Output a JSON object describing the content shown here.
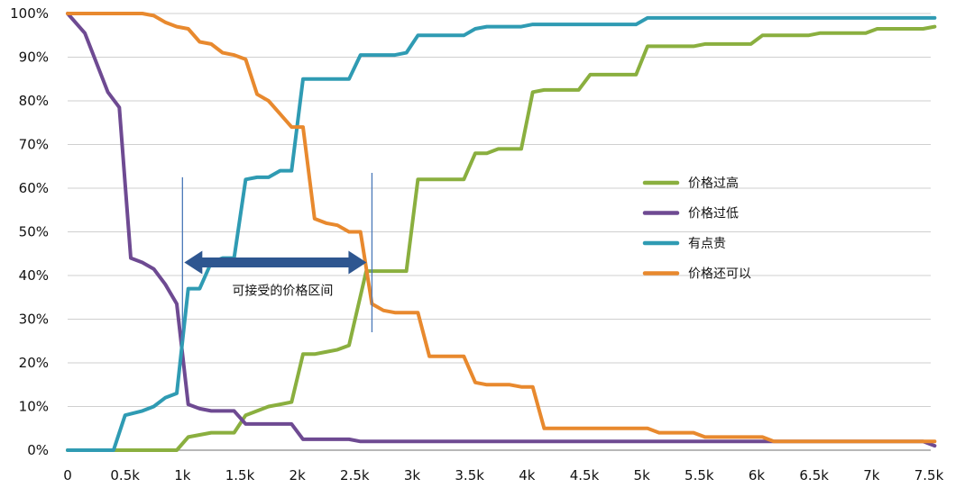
{
  "chart_data": {
    "type": "line",
    "xlim": [
      0,
      7500
    ],
    "ylim": [
      0,
      100
    ],
    "x_ticks": [
      "0",
      "0.5k",
      "1k",
      "1.5k",
      "2k",
      "2.5k",
      "3k",
      "3.5k",
      "4k",
      "4.5k",
      "5k",
      "5.5k",
      "6k",
      "6.5k",
      "7k",
      "7.5k"
    ],
    "y_ticks": [
      "0%",
      "10%",
      "20%",
      "30%",
      "40%",
      "50%",
      "60%",
      "70%",
      "80%",
      "90%",
      "100%"
    ],
    "grid": "horizontal",
    "legend_position": "right",
    "series": [
      {
        "name": "价格过高",
        "color": "#8AAF3F",
        "points": [
          [
            0,
            0
          ],
          [
            500,
            0
          ],
          [
            750,
            0
          ],
          [
            950,
            0
          ],
          [
            1050,
            3
          ],
          [
            1150,
            3.5
          ],
          [
            1250,
            4
          ],
          [
            1450,
            4
          ],
          [
            1550,
            8
          ],
          [
            1650,
            9
          ],
          [
            1750,
            10
          ],
          [
            1850,
            10.5
          ],
          [
            1950,
            11
          ],
          [
            2050,
            22
          ],
          [
            2150,
            22
          ],
          [
            2250,
            22.5
          ],
          [
            2350,
            23
          ],
          [
            2450,
            24
          ],
          [
            2600,
            41
          ],
          [
            2750,
            41
          ],
          [
            2950,
            41
          ],
          [
            3050,
            62
          ],
          [
            3250,
            62
          ],
          [
            3450,
            62
          ],
          [
            3550,
            68
          ],
          [
            3650,
            68
          ],
          [
            3750,
            69
          ],
          [
            3950,
            69
          ],
          [
            4050,
            82
          ],
          [
            4150,
            82.5
          ],
          [
            4250,
            82.5
          ],
          [
            4450,
            82.5
          ],
          [
            4550,
            86
          ],
          [
            4750,
            86
          ],
          [
            4950,
            86
          ],
          [
            5050,
            92.5
          ],
          [
            5250,
            92.5
          ],
          [
            5450,
            92.5
          ],
          [
            5550,
            93
          ],
          [
            5950,
            93
          ],
          [
            6050,
            95
          ],
          [
            6450,
            95
          ],
          [
            6550,
            95.5
          ],
          [
            6950,
            95.5
          ],
          [
            7050,
            96.5
          ],
          [
            7450,
            96.5
          ],
          [
            7550,
            97
          ]
        ]
      },
      {
        "name": "价格过低",
        "color": "#6E4A92",
        "points": [
          [
            0,
            100
          ],
          [
            150,
            95.5
          ],
          [
            350,
            82
          ],
          [
            450,
            78.5
          ],
          [
            550,
            44
          ],
          [
            650,
            43
          ],
          [
            750,
            41.5
          ],
          [
            850,
            38
          ],
          [
            950,
            33.5
          ],
          [
            1050,
            10.5
          ],
          [
            1150,
            9.5
          ],
          [
            1250,
            9
          ],
          [
            1450,
            9
          ],
          [
            1550,
            6
          ],
          [
            1650,
            6
          ],
          [
            1750,
            6
          ],
          [
            1950,
            6
          ],
          [
            2050,
            2.5
          ],
          [
            2250,
            2.5
          ],
          [
            2450,
            2.5
          ],
          [
            2550,
            2
          ],
          [
            7450,
            2
          ],
          [
            7550,
            1
          ]
        ]
      },
      {
        "name": "有点贵",
        "color": "#2F9BB3",
        "points": [
          [
            0,
            0
          ],
          [
            400,
            0
          ],
          [
            500,
            8
          ],
          [
            650,
            9
          ],
          [
            750,
            10
          ],
          [
            850,
            12
          ],
          [
            950,
            13
          ],
          [
            1050,
            37
          ],
          [
            1150,
            37
          ],
          [
            1250,
            43
          ],
          [
            1350,
            44
          ],
          [
            1450,
            44
          ],
          [
            1550,
            62
          ],
          [
            1650,
            62.5
          ],
          [
            1750,
            62.5
          ],
          [
            1850,
            64
          ],
          [
            1950,
            64
          ],
          [
            2050,
            85
          ],
          [
            2250,
            85
          ],
          [
            2450,
            85
          ],
          [
            2550,
            90.5
          ],
          [
            2750,
            90.5
          ],
          [
            2850,
            90.5
          ],
          [
            2950,
            91
          ],
          [
            3050,
            95
          ],
          [
            3250,
            95
          ],
          [
            3450,
            95
          ],
          [
            3550,
            96.5
          ],
          [
            3650,
            97
          ],
          [
            3950,
            97
          ],
          [
            4050,
            97.5
          ],
          [
            4950,
            97.5
          ],
          [
            5050,
            99
          ],
          [
            7550,
            99
          ]
        ]
      },
      {
        "name": "价格还可以",
        "color": "#E8892E",
        "points": [
          [
            0,
            100
          ],
          [
            650,
            100
          ],
          [
            750,
            99.5
          ],
          [
            850,
            98
          ],
          [
            950,
            97
          ],
          [
            1050,
            96.5
          ],
          [
            1150,
            93.5
          ],
          [
            1250,
            93
          ],
          [
            1350,
            91
          ],
          [
            1450,
            90.5
          ],
          [
            1550,
            89.5
          ],
          [
            1650,
            81.5
          ],
          [
            1750,
            80
          ],
          [
            1850,
            77
          ],
          [
            1950,
            74
          ],
          [
            2050,
            74
          ],
          [
            2150,
            53
          ],
          [
            2250,
            52
          ],
          [
            2350,
            51.5
          ],
          [
            2450,
            50
          ],
          [
            2550,
            50
          ],
          [
            2650,
            33.5
          ],
          [
            2750,
            32
          ],
          [
            2850,
            31.5
          ],
          [
            3050,
            31.5
          ],
          [
            3150,
            21.5
          ],
          [
            3350,
            21.5
          ],
          [
            3450,
            21.5
          ],
          [
            3550,
            15.5
          ],
          [
            3650,
            15
          ],
          [
            3850,
            15
          ],
          [
            3950,
            14.5
          ],
          [
            4050,
            14.5
          ],
          [
            4150,
            5
          ],
          [
            4950,
            5
          ],
          [
            5050,
            5
          ],
          [
            5150,
            4
          ],
          [
            5450,
            4
          ],
          [
            5550,
            3
          ],
          [
            6050,
            3
          ],
          [
            6150,
            2
          ],
          [
            7550,
            2
          ]
        ]
      }
    ],
    "annotations": [
      {
        "text": "可接受的价格区间",
        "range_x": [
          1000,
          2650
        ]
      }
    ]
  }
}
